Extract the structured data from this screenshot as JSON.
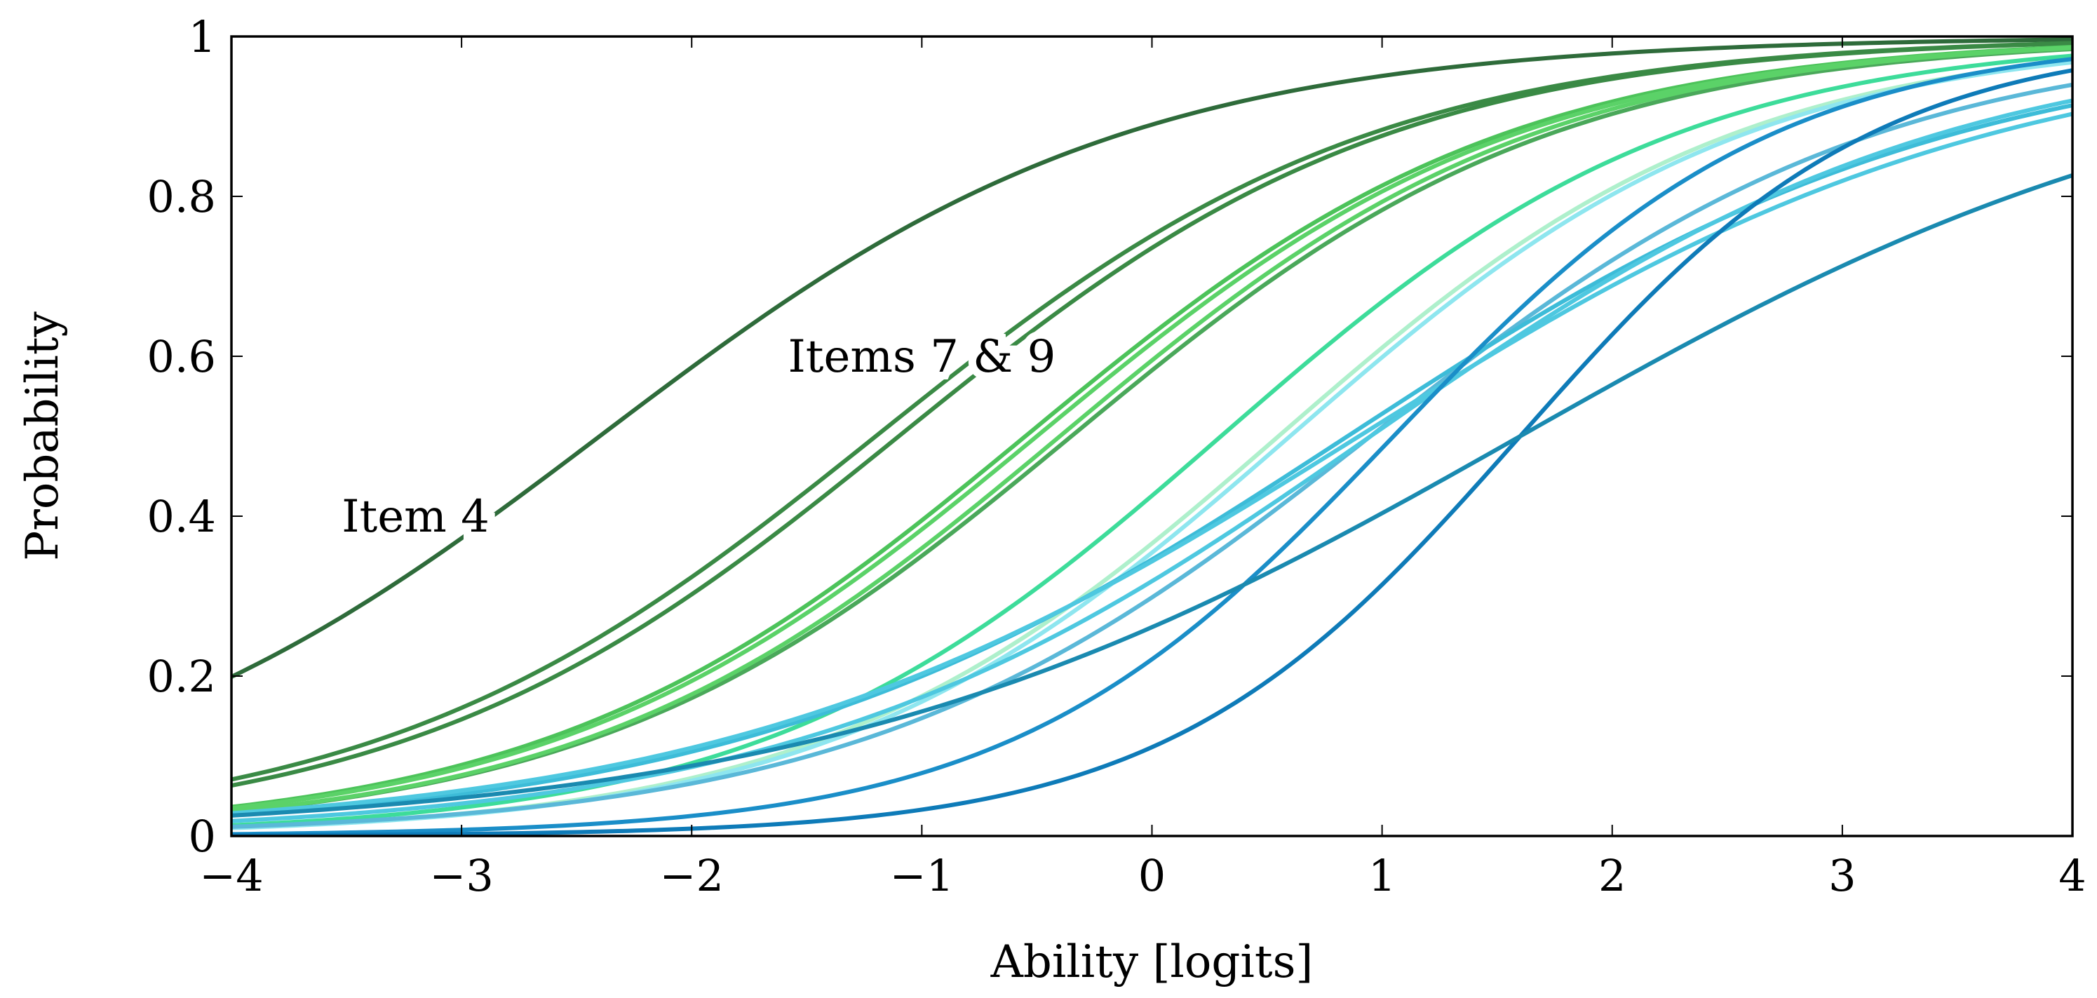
{
  "chart_data": {
    "type": "line",
    "xlabel": "Ability [logits]",
    "ylabel": "Probability",
    "xlim": [
      -4,
      4
    ],
    "ylim": [
      0,
      1
    ],
    "xticks": [
      {
        "value": -4,
        "label": "−4"
      },
      {
        "value": -3,
        "label": "−3"
      },
      {
        "value": -2,
        "label": "−2"
      },
      {
        "value": -1,
        "label": "−1"
      },
      {
        "value": 0,
        "label": "0"
      },
      {
        "value": 1,
        "label": "1"
      },
      {
        "value": 2,
        "label": "2"
      },
      {
        "value": 3,
        "label": "3"
      },
      {
        "value": 4,
        "label": "4"
      }
    ],
    "yticks": [
      {
        "value": 0,
        "label": "0"
      },
      {
        "value": 0.2,
        "label": "0.2"
      },
      {
        "value": 0.4,
        "label": "0.4"
      },
      {
        "value": 0.6,
        "label": "0.6"
      },
      {
        "value": 0.8,
        "label": "0.8"
      },
      {
        "value": 1,
        "label": "1"
      }
    ],
    "grid": false,
    "model": "2PL logistic item characteristic curves: P = 1 / (1 + exp(-a * (ability - b)))",
    "series": [
      {
        "a": 0.87,
        "b": -2.4,
        "color": "#2e6b3a"
      },
      {
        "a": 0.92,
        "b": -1.2,
        "color": "#3a8a45"
      },
      {
        "a": 0.93,
        "b": -1.1,
        "color": "#3a8a45"
      },
      {
        "a": 0.95,
        "b": -0.55,
        "color": "#4cc35a"
      },
      {
        "a": 0.95,
        "b": -0.5,
        "color": "#5bd268"
      },
      {
        "a": 0.95,
        "b": -0.35,
        "color": "#4aa85a"
      },
      {
        "a": 0.96,
        "b": -0.4,
        "color": "#5bd268"
      },
      {
        "a": 1.0,
        "b": 0.3,
        "color": "#3ddc9a"
      },
      {
        "a": 1.0,
        "b": 0.55,
        "color": "#aef0cc"
      },
      {
        "a": 1.0,
        "b": 0.6,
        "color": "#8ee6ef"
      },
      {
        "a": 0.9,
        "b": 0.95,
        "color": "#5ab8d8"
      },
      {
        "a": 0.75,
        "b": 0.85,
        "color": "#3dbcd8"
      },
      {
        "a": 0.8,
        "b": 0.95,
        "color": "#4ec8e0"
      },
      {
        "a": 0.72,
        "b": 0.9,
        "color": "#4ec8e0"
      },
      {
        "a": 1.2,
        "b": 1.05,
        "color": "#1a8ec8"
      },
      {
        "a": 1.3,
        "b": 1.6,
        "color": "#0e7bb8"
      },
      {
        "a": 0.65,
        "b": 1.6,
        "color": "#1a8ab0"
      }
    ],
    "annotations": [
      {
        "text": "Item 4",
        "x": -3.2,
        "y": 0.4
      },
      {
        "text": "Items 7 & 9",
        "x": -1.0,
        "y": 0.6
      }
    ]
  }
}
